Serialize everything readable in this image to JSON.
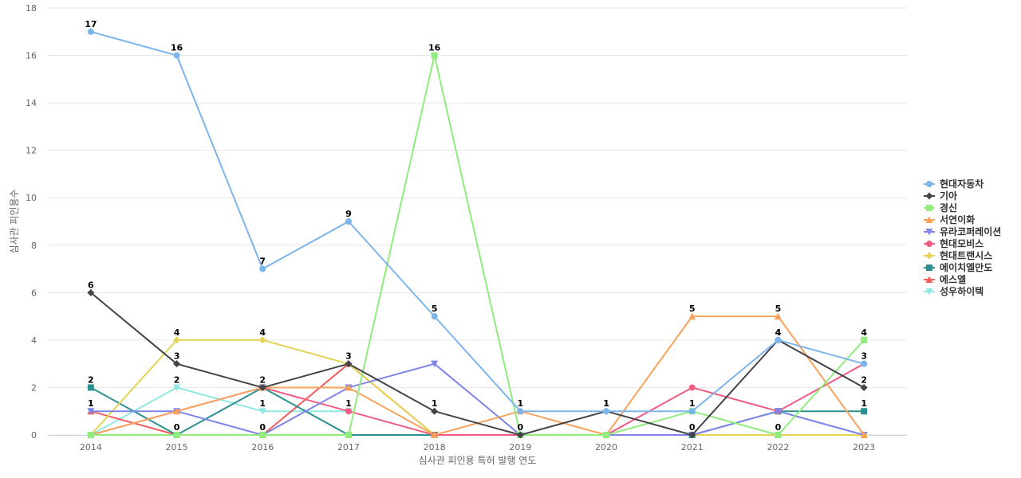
{
  "chart_data": {
    "type": "line",
    "categories": [
      "2014",
      "2015",
      "2016",
      "2017",
      "2018",
      "2019",
      "2020",
      "2021",
      "2022",
      "2023"
    ],
    "xlabel": "심사관 피인용 특허 발행 연도",
    "ylabel": "심사관 피인용수",
    "ylim": [
      0,
      18
    ],
    "yticks": [
      0,
      2,
      4,
      6,
      8,
      10,
      12,
      14,
      16,
      18
    ],
    "grid": true,
    "legend_position": "right",
    "series": [
      {
        "name": "현대자동차",
        "color": "#7cb5ec",
        "marker": "circle",
        "values": [
          17,
          16,
          7,
          9,
          5,
          1,
          1,
          1,
          4,
          3
        ]
      },
      {
        "name": "기아",
        "color": "#434348",
        "marker": "diamond",
        "values": [
          6,
          3,
          2,
          3,
          1,
          0,
          1,
          0,
          4,
          2
        ]
      },
      {
        "name": "경신",
        "color": "#90ed7d",
        "marker": "square",
        "values": [
          0,
          0,
          0,
          0,
          16,
          0,
          0,
          1,
          0,
          4
        ]
      },
      {
        "name": "서연이화",
        "color": "#f7a35c",
        "marker": "triangle",
        "values": [
          0,
          1,
          2,
          2,
          0,
          1,
          0,
          5,
          5,
          0
        ]
      },
      {
        "name": "유라코퍼레이션",
        "color": "#8085e9",
        "marker": "triangle-down",
        "values": [
          1,
          1,
          0,
          2,
          3,
          0,
          0,
          0,
          1,
          0
        ]
      },
      {
        "name": "현대모비스",
        "color": "#f15c80",
        "marker": "circle",
        "values": [
          0,
          1,
          2,
          1,
          0,
          0,
          0,
          2,
          1,
          3
        ]
      },
      {
        "name": "현대트랜시스",
        "color": "#e4d354",
        "marker": "diamond",
        "values": [
          0,
          4,
          4,
          3,
          0,
          0,
          0,
          0,
          0,
          0
        ]
      },
      {
        "name": "에이치엘만도",
        "color": "#2b908f",
        "marker": "square",
        "values": [
          2,
          0,
          2,
          0,
          0,
          0,
          0,
          0,
          1,
          1
        ]
      },
      {
        "name": "에스엘",
        "color": "#f45b5b",
        "marker": "triangle",
        "values": [
          1,
          0,
          0,
          3,
          0,
          0,
          0,
          0,
          0,
          0
        ]
      },
      {
        "name": "성우하이텍",
        "color": "#91e8e1",
        "marker": "triangle-down",
        "values": [
          0,
          2,
          1,
          1,
          0,
          0,
          0,
          0,
          1,
          0
        ]
      }
    ],
    "data_labels": [
      {
        "series": "현대자동차",
        "points": [
          0,
          1,
          2,
          3,
          4,
          5,
          6,
          8
        ]
      },
      {
        "series": "기아",
        "points": [
          0,
          1,
          2,
          3,
          4,
          5,
          6,
          7,
          8,
          9
        ]
      },
      {
        "series": "경신",
        "points": [
          4,
          7,
          8,
          9
        ]
      },
      {
        "series": "서연이화",
        "points": [
          7,
          8
        ]
      },
      {
        "series": "현대모비스",
        "points": [
          9
        ]
      },
      {
        "series": "현대트랜시스",
        "points": [
          1,
          2
        ]
      },
      {
        "series": "에이치엘만도",
        "points": [
          0,
          9
        ]
      },
      {
        "series": "에스엘",
        "points": [
          0,
          1,
          2
        ]
      },
      {
        "series": "성우하이텍",
        "points": [
          1,
          2,
          3
        ]
      }
    ]
  }
}
